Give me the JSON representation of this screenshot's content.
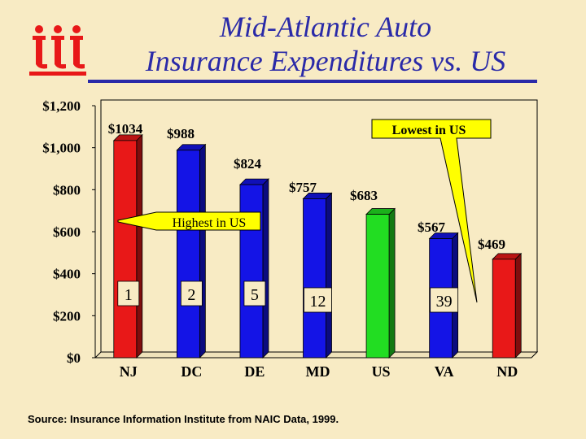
{
  "title_line1": "Mid-Atlantic Auto",
  "title_line2": "Insurance Expenditures vs. US",
  "logo_text": "iii",
  "source": "Source: Insurance Information Institute from NAIC Data, 1999.",
  "colors": {
    "background": "#f8ebc4",
    "title": "#2a2aa8",
    "red": "#e81818",
    "blue": "#1414e6",
    "green": "#22dd22",
    "callout": "#ffff00"
  },
  "chart_data": {
    "type": "bar",
    "categories": [
      "NJ",
      "DC",
      "DE",
      "MD",
      "US",
      "VA",
      "ND"
    ],
    "values": [
      1034,
      988,
      824,
      757,
      683,
      567,
      469
    ],
    "value_labels": [
      "$1034",
      "$988",
      "$824",
      "$757",
      "$683",
      "$567",
      "$469"
    ],
    "bar_colors": [
      "red",
      "blue",
      "blue",
      "blue",
      "green",
      "blue",
      "red"
    ],
    "ranks": [
      "1",
      "2",
      "5",
      "12",
      "",
      "39",
      ""
    ],
    "ylim": [
      0,
      1200
    ],
    "yticks": [
      0,
      200,
      400,
      600,
      800,
      1000,
      1200
    ],
    "ytick_labels": [
      "$0",
      "$200",
      "$400",
      "$600",
      "$800",
      "$1,000",
      "$1,200"
    ],
    "grid": false,
    "annotations": [
      {
        "text": "Highest in US",
        "target": "NJ"
      },
      {
        "text": "Lowest in US",
        "target": "ND"
      }
    ]
  }
}
